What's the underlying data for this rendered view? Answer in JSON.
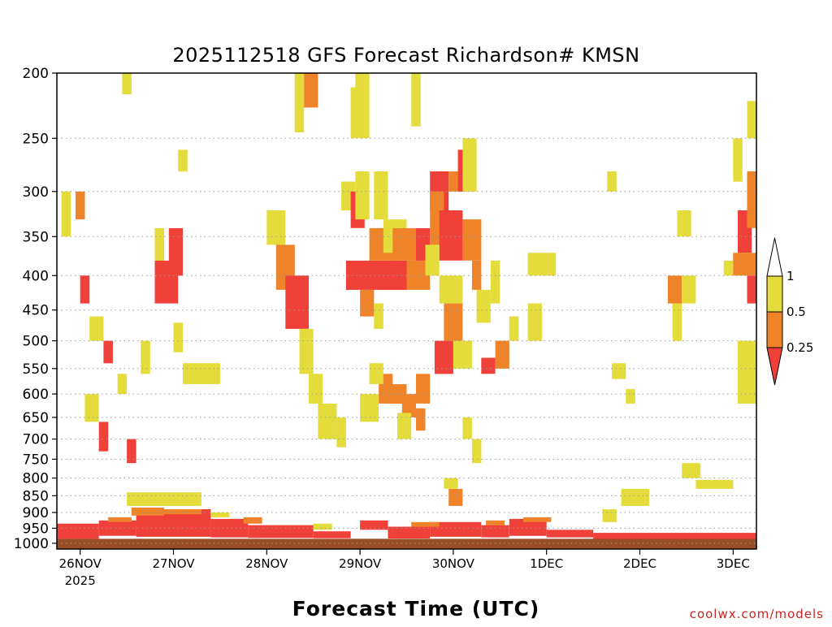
{
  "chart_data": {
    "type": "heatmap",
    "title": "2025112518 GFS Forecast Richardson# KMSN",
    "xlabel": "Forecast Time (UTC)",
    "ylabel": "",
    "credit": "coolwx.com/models",
    "y_axis": {
      "scale": "log-pressure",
      "range_hpa": [
        1020,
        200
      ],
      "ticks": [
        "200",
        "250",
        "300",
        "350",
        "400",
        "450",
        "500",
        "550",
        "600",
        "650",
        "700",
        "750",
        "800",
        "850",
        "900",
        "950",
        "1000"
      ]
    },
    "x_axis": {
      "range_days_from_26NOV00Z": [
        -0.25,
        7.25
      ],
      "ticks": [
        {
          "label": "26NOV",
          "sub": "2025"
        },
        {
          "label": "27NOV",
          "sub": ""
        },
        {
          "label": "28NOV",
          "sub": ""
        },
        {
          "label": "29NOV",
          "sub": ""
        },
        {
          "label": "30NOV",
          "sub": ""
        },
        {
          "label": "1DEC",
          "sub": ""
        },
        {
          "label": "2DEC",
          "sub": ""
        },
        {
          "label": "3DEC",
          "sub": ""
        }
      ]
    },
    "grid": "dotted horizontal at pressure ticks",
    "colorbar": {
      "position": "right",
      "ticks": [
        "1",
        "0.5",
        "0.25"
      ],
      "bins": [
        {
          "range": "> 1",
          "color": "#ffffff"
        },
        {
          "range": "0.5 - 1",
          "color": "#e4dc3a"
        },
        {
          "range": "0.25 - 0.5",
          "color": "#ef8329"
        },
        {
          "range": "< 0.25",
          "color": "#f0403a"
        }
      ]
    },
    "colors": {
      "yellow": "#e4dc3a",
      "orange": "#ef8329",
      "red": "#f0403a",
      "ground": "#9a4e26"
    },
    "cells_note_units": "t = days after 26NOV 00Z, p = hPa",
    "patches": [
      {
        "t0": -0.25,
        "t1": 7.25,
        "p0": 985,
        "p1": 1030,
        "c": "ground"
      },
      {
        "t0": -0.25,
        "t1": 0.2,
        "p0": 935,
        "p1": 985,
        "c": "red"
      },
      {
        "t0": 0.2,
        "t1": 0.6,
        "p0": 925,
        "p1": 975,
        "c": "red"
      },
      {
        "t0": 0.6,
        "t1": 1.4,
        "p0": 890,
        "p1": 978,
        "c": "red"
      },
      {
        "t0": 1.4,
        "t1": 1.8,
        "p0": 920,
        "p1": 980,
        "c": "red"
      },
      {
        "t0": 1.8,
        "t1": 2.5,
        "p0": 940,
        "p1": 982,
        "c": "red"
      },
      {
        "t0": 2.5,
        "t1": 2.9,
        "p0": 960,
        "p1": 983,
        "c": "red"
      },
      {
        "t0": 3.3,
        "t1": 3.75,
        "p0": 945,
        "p1": 984,
        "c": "red"
      },
      {
        "t0": 3.75,
        "t1": 4.3,
        "p0": 930,
        "p1": 978,
        "c": "red"
      },
      {
        "t0": 4.3,
        "t1": 4.6,
        "p0": 940,
        "p1": 980,
        "c": "red"
      },
      {
        "t0": 4.6,
        "t1": 5.0,
        "p0": 920,
        "p1": 975,
        "c": "red"
      },
      {
        "t0": 5.0,
        "t1": 5.5,
        "p0": 955,
        "p1": 980,
        "c": "red"
      },
      {
        "t0": 5.5,
        "t1": 7.25,
        "p0": 965,
        "p1": 985,
        "c": "red"
      },
      {
        "t0": 0.3,
        "t1": 0.55,
        "p0": 915,
        "p1": 930,
        "c": "orange"
      },
      {
        "t0": 0.55,
        "t1": 0.9,
        "p0": 885,
        "p1": 910,
        "c": "orange"
      },
      {
        "t0": 0.9,
        "t1": 1.3,
        "p0": 890,
        "p1": 905,
        "c": "orange"
      },
      {
        "t0": 1.75,
        "t1": 1.95,
        "p0": 915,
        "p1": 935,
        "c": "orange"
      },
      {
        "t0": 3.55,
        "t1": 3.85,
        "p0": 930,
        "p1": 945,
        "c": "orange"
      },
      {
        "t0": 4.35,
        "t1": 4.55,
        "p0": 925,
        "p1": 940,
        "c": "orange"
      },
      {
        "t0": 4.75,
        "t1": 5.05,
        "p0": 915,
        "p1": 930,
        "c": "orange"
      },
      {
        "t0": 0.5,
        "t1": 1.3,
        "p0": 840,
        "p1": 880,
        "c": "yellow"
      },
      {
        "t0": 1.4,
        "t1": 1.6,
        "p0": 900,
        "p1": 915,
        "c": "yellow"
      },
      {
        "t0": 2.5,
        "t1": 2.7,
        "p0": 935,
        "p1": 955,
        "c": "yellow"
      },
      {
        "t0": 3.0,
        "t1": 3.3,
        "p0": 925,
        "p1": 955,
        "c": "red"
      },
      {
        "t0": 5.8,
        "t1": 6.1,
        "p0": 830,
        "p1": 880,
        "c": "yellow"
      },
      {
        "t0": 5.6,
        "t1": 5.75,
        "p0": 890,
        "p1": 930,
        "c": "yellow"
      },
      {
        "t0": 6.45,
        "t1": 6.65,
        "p0": 760,
        "p1": 800,
        "c": "yellow"
      },
      {
        "t0": 6.6,
        "t1": 7.0,
        "p0": 805,
        "p1": 830,
        "c": "yellow"
      },
      {
        "t0": -0.2,
        "t1": -0.1,
        "p0": 300,
        "p1": 350,
        "c": "yellow"
      },
      {
        "t0": -0.05,
        "t1": 0.05,
        "p0": 300,
        "p1": 330,
        "c": "orange"
      },
      {
        "t0": 0.0,
        "t1": 0.1,
        "p0": 400,
        "p1": 440,
        "c": "red"
      },
      {
        "t0": 0.1,
        "t1": 0.25,
        "p0": 460,
        "p1": 500,
        "c": "yellow"
      },
      {
        "t0": 0.25,
        "t1": 0.35,
        "p0": 500,
        "p1": 540,
        "c": "red"
      },
      {
        "t0": 0.05,
        "t1": 0.2,
        "p0": 600,
        "p1": 660,
        "c": "yellow"
      },
      {
        "t0": 0.2,
        "t1": 0.3,
        "p0": 660,
        "p1": 730,
        "c": "red"
      },
      {
        "t0": 0.4,
        "t1": 0.5,
        "p0": 560,
        "p1": 600,
        "c": "yellow"
      },
      {
        "t0": 0.5,
        "t1": 0.6,
        "p0": 700,
        "p1": 760,
        "c": "red"
      },
      {
        "t0": 0.8,
        "t1": 0.9,
        "p0": 340,
        "p1": 380,
        "c": "yellow"
      },
      {
        "t0": 0.8,
        "t1": 1.05,
        "p0": 380,
        "p1": 440,
        "c": "red"
      },
      {
        "t0": 0.95,
        "t1": 1.1,
        "p0": 340,
        "p1": 400,
        "c": "red"
      },
      {
        "t0": 1.1,
        "t1": 1.5,
        "p0": 540,
        "p1": 580,
        "c": "yellow"
      },
      {
        "t0": 1.0,
        "t1": 1.1,
        "p0": 470,
        "p1": 520,
        "c": "yellow"
      },
      {
        "t0": 0.65,
        "t1": 0.75,
        "p0": 500,
        "p1": 560,
        "c": "yellow"
      },
      {
        "t0": 0.45,
        "t1": 0.55,
        "p0": 200,
        "p1": 215,
        "c": "yellow"
      },
      {
        "t0": 1.05,
        "t1": 1.15,
        "p0": 260,
        "p1": 280,
        "c": "yellow"
      },
      {
        "t0": 2.0,
        "t1": 2.2,
        "p0": 320,
        "p1": 360,
        "c": "yellow"
      },
      {
        "t0": 2.1,
        "t1": 2.3,
        "p0": 360,
        "p1": 420,
        "c": "orange"
      },
      {
        "t0": 2.2,
        "t1": 2.45,
        "p0": 400,
        "p1": 480,
        "c": "red"
      },
      {
        "t0": 2.3,
        "t1": 2.4,
        "p0": 200,
        "p1": 245,
        "c": "yellow"
      },
      {
        "t0": 2.4,
        "t1": 2.55,
        "p0": 200,
        "p1": 225,
        "c": "orange"
      },
      {
        "t0": 2.35,
        "t1": 2.5,
        "p0": 480,
        "p1": 560,
        "c": "yellow"
      },
      {
        "t0": 2.45,
        "t1": 2.6,
        "p0": 560,
        "p1": 620,
        "c": "yellow"
      },
      {
        "t0": 2.55,
        "t1": 2.75,
        "p0": 620,
        "p1": 700,
        "c": "yellow"
      },
      {
        "t0": 2.75,
        "t1": 2.85,
        "p0": 650,
        "p1": 720,
        "c": "yellow"
      },
      {
        "t0": 2.8,
        "t1": 2.95,
        "p0": 290,
        "p1": 320,
        "c": "yellow"
      },
      {
        "t0": 2.9,
        "t1": 3.05,
        "p0": 300,
        "p1": 340,
        "c": "red"
      },
      {
        "t0": 2.85,
        "t1": 3.5,
        "p0": 380,
        "p1": 420,
        "c": "red"
      },
      {
        "t0": 3.1,
        "t1": 3.4,
        "p0": 340,
        "p1": 380,
        "c": "orange"
      },
      {
        "t0": 3.0,
        "t1": 3.15,
        "p0": 420,
        "p1": 460,
        "c": "orange"
      },
      {
        "t0": 2.95,
        "t1": 3.1,
        "p0": 280,
        "p1": 330,
        "c": "yellow"
      },
      {
        "t0": 2.95,
        "t1": 3.1,
        "p0": 200,
        "p1": 210,
        "c": "yellow"
      },
      {
        "t0": 2.9,
        "t1": 3.1,
        "p0": 210,
        "p1": 250,
        "c": "yellow"
      },
      {
        "t0": 3.15,
        "t1": 3.3,
        "p0": 280,
        "p1": 330,
        "c": "yellow"
      },
      {
        "t0": 3.25,
        "t1": 3.5,
        "p0": 330,
        "p1": 370,
        "c": "yellow"
      },
      {
        "t0": 3.35,
        "t1": 3.6,
        "p0": 340,
        "p1": 380,
        "c": "orange"
      },
      {
        "t0": 3.5,
        "t1": 3.75,
        "p0": 380,
        "p1": 420,
        "c": "orange"
      },
      {
        "t0": 3.6,
        "t1": 3.75,
        "p0": 340,
        "p1": 380,
        "c": "red"
      },
      {
        "t0": 3.2,
        "t1": 3.35,
        "p0": 560,
        "p1": 620,
        "c": "orange"
      },
      {
        "t0": 3.3,
        "t1": 3.5,
        "p0": 580,
        "p1": 620,
        "c": "orange"
      },
      {
        "t0": 3.45,
        "t1": 3.6,
        "p0": 600,
        "p1": 650,
        "c": "orange"
      },
      {
        "t0": 3.6,
        "t1": 3.7,
        "p0": 630,
        "p1": 680,
        "c": "orange"
      },
      {
        "t0": 3.0,
        "t1": 3.2,
        "p0": 600,
        "p1": 660,
        "c": "yellow"
      },
      {
        "t0": 3.1,
        "t1": 3.25,
        "p0": 540,
        "p1": 580,
        "c": "yellow"
      },
      {
        "t0": 3.4,
        "t1": 3.55,
        "p0": 640,
        "p1": 700,
        "c": "yellow"
      },
      {
        "t0": 3.15,
        "t1": 3.25,
        "p0": 440,
        "p1": 480,
        "c": "yellow"
      },
      {
        "t0": 3.75,
        "t1": 3.95,
        "p0": 280,
        "p1": 320,
        "c": "red"
      },
      {
        "t0": 3.75,
        "t1": 3.9,
        "p0": 300,
        "p1": 360,
        "c": "orange"
      },
      {
        "t0": 3.85,
        "t1": 4.1,
        "p0": 320,
        "p1": 380,
        "c": "red"
      },
      {
        "t0": 3.95,
        "t1": 4.15,
        "p0": 280,
        "p1": 300,
        "c": "orange"
      },
      {
        "t0": 4.05,
        "t1": 4.15,
        "p0": 260,
        "p1": 300,
        "c": "red"
      },
      {
        "t0": 4.1,
        "t1": 4.25,
        "p0": 250,
        "p1": 300,
        "c": "yellow"
      },
      {
        "t0": 3.7,
        "t1": 3.85,
        "p0": 360,
        "p1": 400,
        "c": "yellow"
      },
      {
        "t0": 3.85,
        "t1": 4.1,
        "p0": 400,
        "p1": 440,
        "c": "yellow"
      },
      {
        "t0": 3.9,
        "t1": 4.1,
        "p0": 440,
        "p1": 500,
        "c": "orange"
      },
      {
        "t0": 3.8,
        "t1": 4.0,
        "p0": 500,
        "p1": 560,
        "c": "red"
      },
      {
        "t0": 4.0,
        "t1": 4.2,
        "p0": 500,
        "p1": 550,
        "c": "yellow"
      },
      {
        "t0": 4.1,
        "t1": 4.3,
        "p0": 330,
        "p1": 380,
        "c": "orange"
      },
      {
        "t0": 4.2,
        "t1": 4.3,
        "p0": 380,
        "p1": 420,
        "c": "orange"
      },
      {
        "t0": 4.25,
        "t1": 4.4,
        "p0": 420,
        "p1": 470,
        "c": "yellow"
      },
      {
        "t0": 4.3,
        "t1": 4.45,
        "p0": 530,
        "p1": 560,
        "c": "red"
      },
      {
        "t0": 4.45,
        "t1": 4.6,
        "p0": 500,
        "p1": 550,
        "c": "orange"
      },
      {
        "t0": 3.6,
        "t1": 3.75,
        "p0": 560,
        "p1": 620,
        "c": "orange"
      },
      {
        "t0": 3.55,
        "t1": 3.65,
        "p0": 200,
        "p1": 240,
        "c": "yellow"
      },
      {
        "t0": 4.4,
        "t1": 4.5,
        "p0": 380,
        "p1": 440,
        "c": "yellow"
      },
      {
        "t0": 3.95,
        "t1": 4.1,
        "p0": 830,
        "p1": 880,
        "c": "orange"
      },
      {
        "t0": 3.9,
        "t1": 4.05,
        "p0": 800,
        "p1": 830,
        "c": "yellow"
      },
      {
        "t0": 4.1,
        "t1": 4.2,
        "p0": 650,
        "p1": 700,
        "c": "yellow"
      },
      {
        "t0": 4.2,
        "t1": 4.3,
        "p0": 700,
        "p1": 760,
        "c": "yellow"
      },
      {
        "t0": 4.8,
        "t1": 5.1,
        "p0": 370,
        "p1": 400,
        "c": "yellow"
      },
      {
        "t0": 4.6,
        "t1": 4.7,
        "p0": 460,
        "p1": 500,
        "c": "yellow"
      },
      {
        "t0": 4.8,
        "t1": 4.95,
        "p0": 440,
        "p1": 500,
        "c": "yellow"
      },
      {
        "t0": 5.65,
        "t1": 5.75,
        "p0": 280,
        "p1": 300,
        "c": "yellow"
      },
      {
        "t0": 5.7,
        "t1": 5.85,
        "p0": 540,
        "p1": 570,
        "c": "yellow"
      },
      {
        "t0": 5.85,
        "t1": 5.95,
        "p0": 590,
        "p1": 620,
        "c": "yellow"
      },
      {
        "t0": 6.3,
        "t1": 6.45,
        "p0": 400,
        "p1": 440,
        "c": "orange"
      },
      {
        "t0": 6.45,
        "t1": 6.6,
        "p0": 400,
        "p1": 440,
        "c": "yellow"
      },
      {
        "t0": 6.4,
        "t1": 6.55,
        "p0": 320,
        "p1": 350,
        "c": "yellow"
      },
      {
        "t0": 6.35,
        "t1": 6.45,
        "p0": 440,
        "p1": 500,
        "c": "yellow"
      },
      {
        "t0": 6.9,
        "t1": 7.0,
        "p0": 380,
        "p1": 400,
        "c": "yellow"
      },
      {
        "t0": 7.0,
        "t1": 7.1,
        "p0": 250,
        "p1": 290,
        "c": "yellow"
      },
      {
        "t0": 7.05,
        "t1": 7.2,
        "p0": 320,
        "p1": 370,
        "c": "red"
      },
      {
        "t0": 7.0,
        "t1": 7.25,
        "p0": 370,
        "p1": 400,
        "c": "orange"
      },
      {
        "t0": 7.15,
        "t1": 7.25,
        "p0": 280,
        "p1": 340,
        "c": "orange"
      },
      {
        "t0": 7.15,
        "t1": 7.25,
        "p0": 220,
        "p1": 250,
        "c": "yellow"
      },
      {
        "t0": 7.05,
        "t1": 7.25,
        "p0": 500,
        "p1": 620,
        "c": "yellow"
      },
      {
        "t0": 7.15,
        "t1": 7.25,
        "p0": 400,
        "p1": 440,
        "c": "red"
      }
    ]
  }
}
